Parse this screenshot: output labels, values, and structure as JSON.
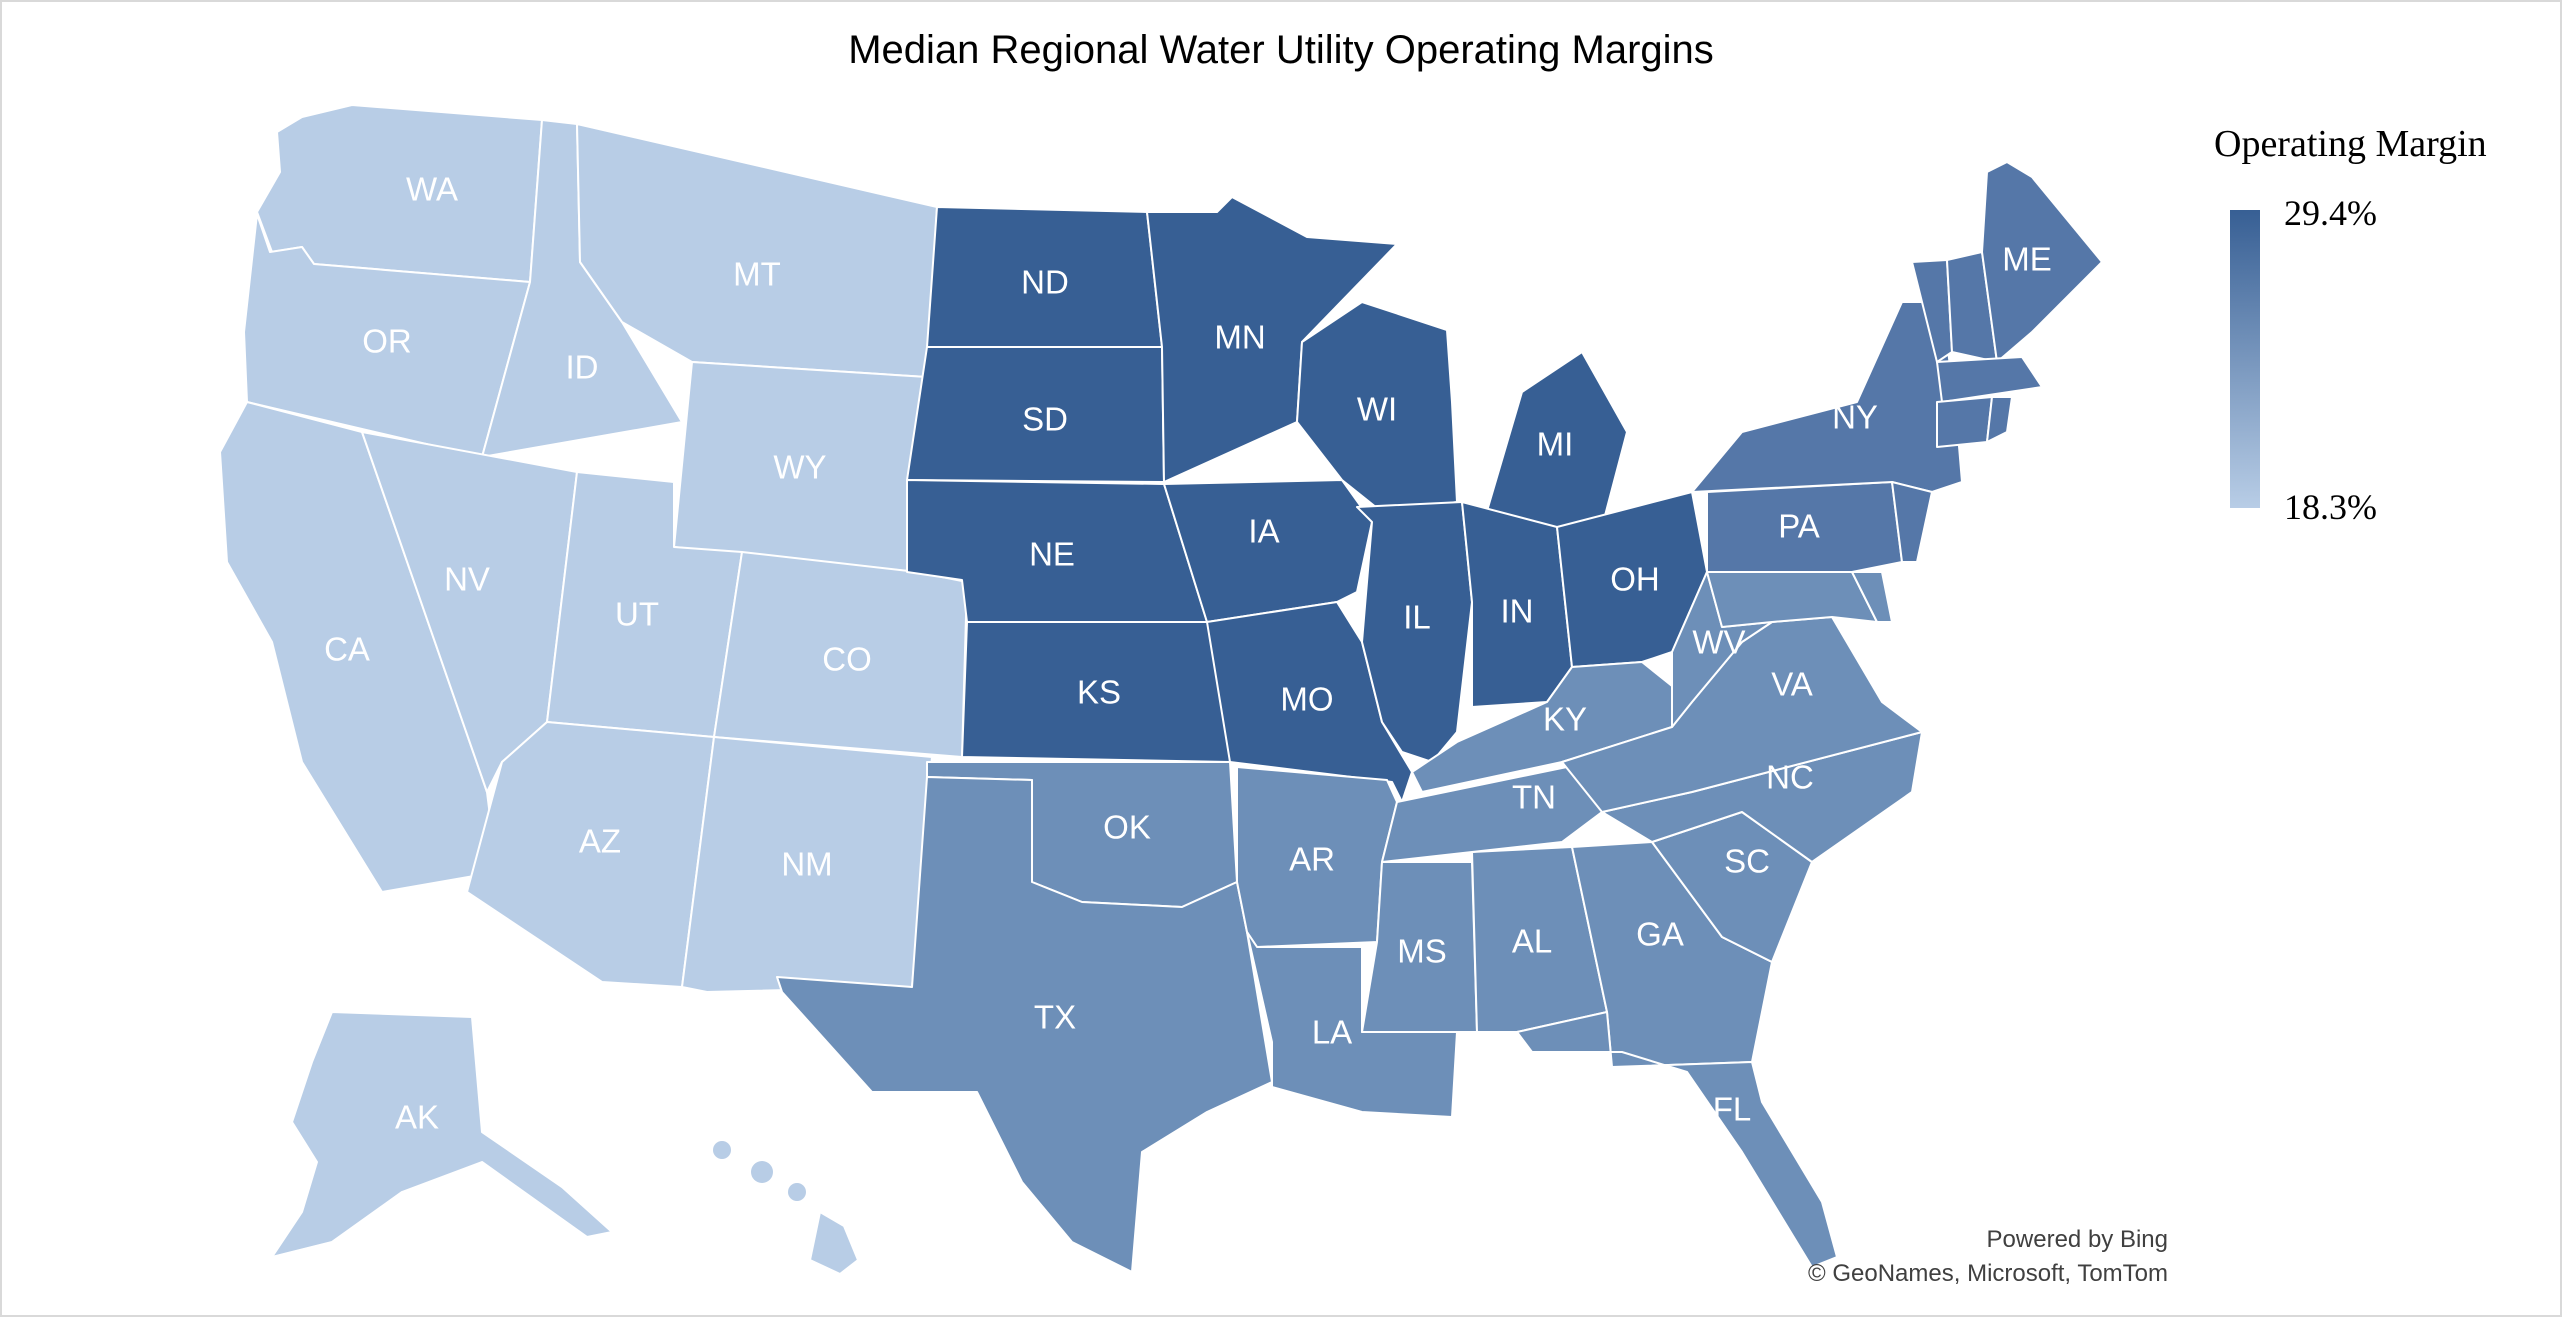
{
  "chart_data": {
    "type": "choropleth",
    "title": "Median Regional Water Utility Operating Margins",
    "legend": {
      "title": "Operating Margin",
      "max_label": "29.4%",
      "min_label": "18.3%",
      "max_value": 29.4,
      "min_value": 18.3,
      "max_color": "#375f94",
      "min_color": "#b8cde6",
      "placement": "right"
    },
    "color_tiers": {
      "west": "#b8cde6",
      "midwest": "#375f94",
      "south": "#6d8fb8",
      "northeast": "#5577a8"
    },
    "states": [
      {
        "id": "WA",
        "label": "WA",
        "tier": "west"
      },
      {
        "id": "OR",
        "label": "OR",
        "tier": "west"
      },
      {
        "id": "CA",
        "label": "CA",
        "tier": "west"
      },
      {
        "id": "ID",
        "label": "ID",
        "tier": "west"
      },
      {
        "id": "NV",
        "label": "NV",
        "tier": "west"
      },
      {
        "id": "MT",
        "label": "MT",
        "tier": "west"
      },
      {
        "id": "WY",
        "label": "WY",
        "tier": "west"
      },
      {
        "id": "UT",
        "label": "UT",
        "tier": "west"
      },
      {
        "id": "CO",
        "label": "CO",
        "tier": "west"
      },
      {
        "id": "AZ",
        "label": "AZ",
        "tier": "west"
      },
      {
        "id": "NM",
        "label": "NM",
        "tier": "west"
      },
      {
        "id": "AK",
        "label": "AK",
        "tier": "west"
      },
      {
        "id": "HI",
        "label": "",
        "tier": "west"
      },
      {
        "id": "ND",
        "label": "ND",
        "tier": "midwest"
      },
      {
        "id": "SD",
        "label": "SD",
        "tier": "midwest"
      },
      {
        "id": "NE",
        "label": "NE",
        "tier": "midwest"
      },
      {
        "id": "KS",
        "label": "KS",
        "tier": "midwest"
      },
      {
        "id": "MN",
        "label": "MN",
        "tier": "midwest"
      },
      {
        "id": "IA",
        "label": "IA",
        "tier": "midwest"
      },
      {
        "id": "MO",
        "label": "MO",
        "tier": "midwest"
      },
      {
        "id": "WI",
        "label": "WI",
        "tier": "midwest"
      },
      {
        "id": "IL",
        "label": "IL",
        "tier": "midwest"
      },
      {
        "id": "MI",
        "label": "MI",
        "tier": "midwest"
      },
      {
        "id": "IN",
        "label": "IN",
        "tier": "midwest"
      },
      {
        "id": "OH",
        "label": "OH",
        "tier": "midwest"
      },
      {
        "id": "OK",
        "label": "OK",
        "tier": "south"
      },
      {
        "id": "TX",
        "label": "TX",
        "tier": "south"
      },
      {
        "id": "AR",
        "label": "AR",
        "tier": "south"
      },
      {
        "id": "LA",
        "label": "LA",
        "tier": "south"
      },
      {
        "id": "MS",
        "label": "MS",
        "tier": "south"
      },
      {
        "id": "AL",
        "label": "AL",
        "tier": "south"
      },
      {
        "id": "TN",
        "label": "TN",
        "tier": "south"
      },
      {
        "id": "KY",
        "label": "KY",
        "tier": "south"
      },
      {
        "id": "GA",
        "label": "GA",
        "tier": "south"
      },
      {
        "id": "FL",
        "label": "FL",
        "tier": "south"
      },
      {
        "id": "SC",
        "label": "SC",
        "tier": "south"
      },
      {
        "id": "NC",
        "label": "NC",
        "tier": "south"
      },
      {
        "id": "VA",
        "label": "VA",
        "tier": "south"
      },
      {
        "id": "WV",
        "label": "WV",
        "tier": "south"
      },
      {
        "id": "MD",
        "label": "",
        "tier": "south"
      },
      {
        "id": "DE",
        "label": "",
        "tier": "south"
      },
      {
        "id": "PA",
        "label": "PA",
        "tier": "northeast"
      },
      {
        "id": "NY",
        "label": "NY",
        "tier": "northeast"
      },
      {
        "id": "NJ",
        "label": "",
        "tier": "northeast"
      },
      {
        "id": "VT",
        "label": "",
        "tier": "northeast"
      },
      {
        "id": "NH",
        "label": "",
        "tier": "northeast"
      },
      {
        "id": "ME",
        "label": "ME",
        "tier": "northeast"
      },
      {
        "id": "MA",
        "label": "",
        "tier": "northeast"
      },
      {
        "id": "CT",
        "label": "",
        "tier": "northeast"
      },
      {
        "id": "RI",
        "label": "",
        "tier": "northeast"
      }
    ]
  },
  "attribution": {
    "line1": "Powered by Bing",
    "line2": "© GeoNames, Microsoft, TomTom"
  }
}
